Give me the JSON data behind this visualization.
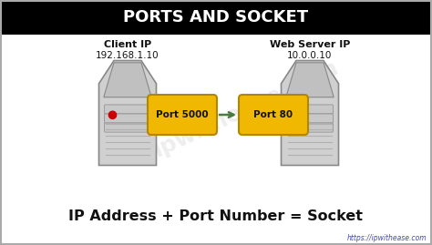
{
  "title": "PORTS AND SOCKET",
  "title_bg": "#000000",
  "title_color": "#ffffff",
  "bg_color": "#ffffff",
  "outer_border_color": "#aaaaaa",
  "client_label": "Client IP",
  "client_ip": "192.168.1.10",
  "server_label": "Web Server IP",
  "server_ip": "10.0.0.10",
  "port_left_label": "Port 5000",
  "port_right_label": "Port 80",
  "port_box_color": "#f0b800",
  "port_border_color": "#b08800",
  "arrow_color": "#4a7c3f",
  "bottom_text": "IP Address + Port Number = Socket",
  "watermark": "https://ipwithease.com",
  "server_body_color": "#d0d0d0",
  "server_top_color": "#c0c0c0",
  "server_stripe_color": "#c8c8c8",
  "server_edge_color": "#888888",
  "server_vent_color": "#b0b0b0",
  "led_color": "#cc0000",
  "watermark_diag": "ipwithease.com"
}
